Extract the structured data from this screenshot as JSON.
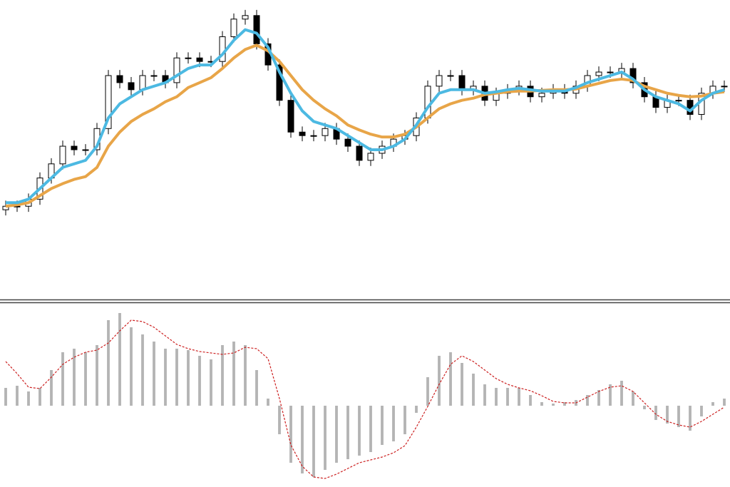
{
  "chart_data": [
    {
      "type": "candlestick",
      "ylim": [
        0,
        420
      ],
      "up_color": "#ffffff",
      "down_color": "#000000",
      "edge_color": "#000000",
      "open": [
        125,
        130,
        130,
        140,
        170,
        190,
        215,
        210,
        210,
        240,
        315,
        305,
        295,
        315,
        315,
        305,
        340,
        340,
        335,
        335,
        370,
        395,
        400,
        360,
        330,
        280,
        235,
        230,
        230,
        240,
        225,
        215,
        195,
        205,
        215,
        225,
        230,
        255,
        300,
        315,
        315,
        295,
        300,
        280,
        290,
        295,
        300,
        285,
        290,
        295,
        290,
        300,
        315,
        320,
        320,
        325,
        305,
        285,
        270,
        280,
        280,
        260,
        290,
        300
      ],
      "high": [
        138,
        138,
        148,
        178,
        198,
        223,
        223,
        218,
        248,
        323,
        323,
        313,
        323,
        323,
        323,
        348,
        348,
        348,
        343,
        378,
        403,
        408,
        408,
        368,
        338,
        288,
        243,
        238,
        248,
        248,
        233,
        223,
        213,
        223,
        233,
        238,
        263,
        308,
        323,
        323,
        323,
        308,
        308,
        298,
        303,
        308,
        308,
        298,
        303,
        303,
        308,
        323,
        328,
        328,
        333,
        333,
        313,
        293,
        288,
        288,
        288,
        298,
        308,
        308
      ],
      "low": [
        117,
        122,
        122,
        132,
        162,
        182,
        202,
        202,
        202,
        232,
        297,
        287,
        287,
        307,
        297,
        297,
        332,
        327,
        327,
        327,
        362,
        387,
        352,
        322,
        272,
        227,
        222,
        222,
        222,
        217,
        207,
        187,
        187,
        197,
        207,
        217,
        222,
        247,
        292,
        307,
        287,
        287,
        272,
        272,
        282,
        287,
        277,
        277,
        282,
        282,
        282,
        292,
        307,
        312,
        312,
        297,
        277,
        262,
        262,
        272,
        252,
        252,
        282,
        292
      ],
      "close": [
        130,
        130,
        140,
        170,
        190,
        215,
        210,
        210,
        240,
        315,
        305,
        295,
        315,
        315,
        305,
        340,
        340,
        335,
        335,
        370,
        395,
        400,
        360,
        330,
        280,
        235,
        230,
        230,
        240,
        225,
        215,
        195,
        205,
        215,
        225,
        230,
        255,
        300,
        315,
        315,
        295,
        300,
        280,
        290,
        295,
        300,
        285,
        290,
        295,
        290,
        300,
        315,
        320,
        320,
        325,
        305,
        285,
        270,
        280,
        280,
        260,
        290,
        300,
        300
      ],
      "series": [
        {
          "color": "#e8a548",
          "values": [
            130,
            132,
            135,
            145,
            155,
            162,
            168,
            172,
            185,
            215,
            235,
            250,
            260,
            268,
            278,
            285,
            298,
            305,
            312,
            325,
            340,
            352,
            358,
            350,
            335,
            315,
            295,
            280,
            268,
            258,
            245,
            238,
            232,
            228,
            228,
            232,
            242,
            255,
            268,
            275,
            280,
            283,
            288,
            290,
            292,
            293,
            293,
            294,
            295,
            295,
            296,
            300,
            304,
            308,
            310,
            308,
            300,
            295,
            290,
            287,
            285,
            286,
            290,
            292
          ]
        },
        {
          "color": "#4cb9e2",
          "values": [
            135,
            135,
            140,
            155,
            170,
            185,
            190,
            195,
            215,
            255,
            275,
            285,
            295,
            300,
            305,
            315,
            325,
            330,
            330,
            345,
            365,
            380,
            375,
            355,
            320,
            290,
            265,
            250,
            245,
            240,
            230,
            220,
            210,
            210,
            215,
            225,
            245,
            270,
            290,
            295,
            295,
            295,
            290,
            292,
            295,
            297,
            295,
            293,
            293,
            293,
            298,
            305,
            310,
            315,
            320,
            310,
            295,
            285,
            280,
            275,
            265,
            280,
            290,
            295
          ]
        }
      ]
    },
    {
      "type": "bar",
      "ylim": [
        -114,
        144
      ],
      "color": "#b4b4b4",
      "values": [
        25,
        28,
        20,
        25,
        50,
        75,
        80,
        75,
        85,
        120,
        130,
        110,
        100,
        90,
        80,
        80,
        78,
        70,
        65,
        85,
        90,
        85,
        50,
        10,
        -40,
        -80,
        -95,
        -100,
        -90,
        -80,
        -75,
        -70,
        -65,
        -55,
        -50,
        -40,
        -10,
        40,
        70,
        75,
        60,
        45,
        30,
        25,
        25,
        25,
        15,
        5,
        3,
        5,
        8,
        15,
        22,
        30,
        35,
        20,
        -5,
        -20,
        -25,
        -30,
        -35,
        -15,
        5,
        10
      ],
      "series": [
        {
          "color": "#cc2020",
          "dashed": true,
          "values": [
            62,
            45,
            26,
            24,
            40,
            58,
            68,
            75,
            78,
            88,
            105,
            120,
            118,
            110,
            98,
            86,
            80,
            76,
            74,
            72,
            74,
            82,
            80,
            66,
            10,
            -55,
            -85,
            -100,
            -102,
            -96,
            -88,
            -80,
            -76,
            -72,
            -66,
            -56,
            -30,
            -1,
            30,
            58,
            70,
            62,
            50,
            38,
            30,
            25,
            21,
            14,
            6,
            4,
            4,
            12,
            20,
            26,
            28,
            20,
            4,
            -12,
            -22,
            -27,
            -30,
            -22,
            -12,
            -2
          ]
        }
      ]
    }
  ]
}
